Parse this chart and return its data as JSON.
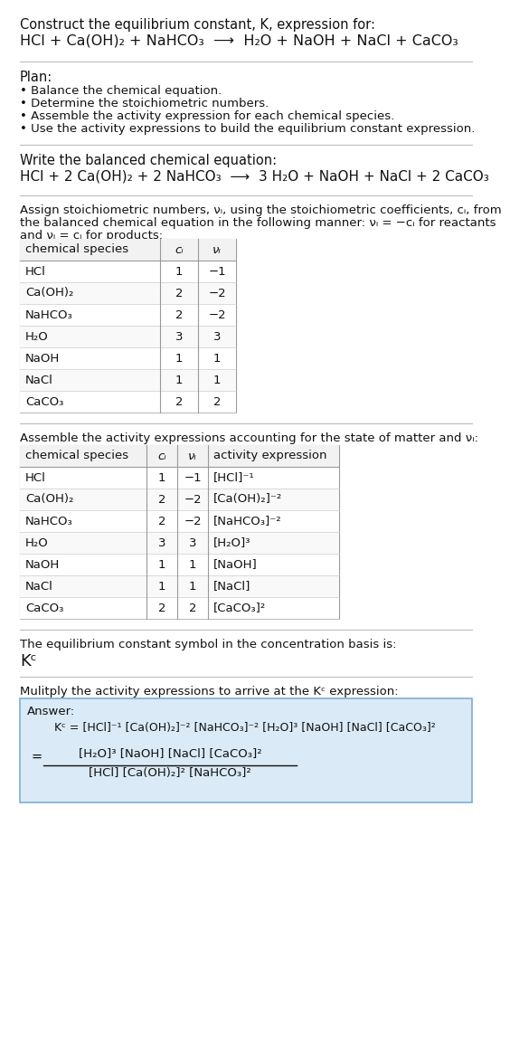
{
  "title1": "Construct the equilibrium constant, K, expression for:",
  "title2": "HCl + Ca(OH)₂ + NaHCO₃  ⟶  H₂O + NaOH + NaCl + CaCO₃",
  "plan_header": "Plan:",
  "plan_items": [
    "• Balance the chemical equation.",
    "• Determine the stoichiometric numbers.",
    "• Assemble the activity expression for each chemical species.",
    "• Use the activity expressions to build the equilibrium constant expression."
  ],
  "bal_header": "Write the balanced chemical equation:",
  "bal_eq": "HCl + 2 Ca(OH)₂ + 2 NaHCO₃  ⟶  3 H₂O + NaOH + NaCl + 2 CaCO₃",
  "stoich_text1": "Assign stoichiometric numbers, νᵢ, using the stoichiometric coefficients, cᵢ, from",
  "stoich_text2": "the balanced chemical equation in the following manner: νᵢ = −cᵢ for reactants",
  "stoich_text3": "and νᵢ = cᵢ for products:",
  "t1_headers": [
    "chemical species",
    "cᵢ",
    "νᵢ"
  ],
  "t1_rows": [
    [
      "HCl",
      "1",
      "−1"
    ],
    [
      "Ca(OH)₂",
      "2",
      "−2"
    ],
    [
      "NaHCO₃",
      "2",
      "−2"
    ],
    [
      "H₂O",
      "3",
      "3"
    ],
    [
      "NaOH",
      "1",
      "1"
    ],
    [
      "NaCl",
      "1",
      "1"
    ],
    [
      "CaCO₃",
      "2",
      "2"
    ]
  ],
  "act_header": "Assemble the activity expressions accounting for the state of matter and νᵢ:",
  "t2_headers": [
    "chemical species",
    "cᵢ",
    "νᵢ",
    "activity expression"
  ],
  "t2_rows": [
    [
      "HCl",
      "1",
      "−1",
      "[HCl]⁻¹"
    ],
    [
      "Ca(OH)₂",
      "2",
      "−2",
      "[Ca(OH)₂]⁻²"
    ],
    [
      "NaHCO₃",
      "2",
      "−2",
      "[NaHCO₃]⁻²"
    ],
    [
      "H₂O",
      "3",
      "3",
      "[H₂O]³"
    ],
    [
      "NaOH",
      "1",
      "1",
      "[NaOH]"
    ],
    [
      "NaCl",
      "1",
      "1",
      "[NaCl]"
    ],
    [
      "CaCO₃",
      "2",
      "2",
      "[CaCO₃]²"
    ]
  ],
  "kc_header": "The equilibrium constant symbol in the concentration basis is:",
  "kc_symbol": "Kᶜ",
  "mul_header": "Mulitply the activity expressions to arrive at the Kᶜ expression:",
  "ans_label": "Answer:",
  "ans_line1": "Kᶜ = [HCl]⁻¹ [Ca(OH)₂]⁻² [NaHCO₃]⁻² [H₂O]³ [NaOH] [NaCl] [CaCO₃]²",
  "ans_eq_line1_num": "[H₂O]³ [NaOH] [NaCl] [CaCO₃]²",
  "ans_eq_line1_den": "[HCl] [Ca(OH)₂]² [NaHCO₃]²",
  "bg": "#ffffff",
  "ans_bg": "#daeaf6",
  "ans_border": "#7bafd4",
  "div_color": "#bbbbbb",
  "text_color": "#111111",
  "fs": 10.5,
  "fs_small": 9.5,
  "fs_title2": 11.5,
  "fs_bal": 11.0,
  "fs_kc": 13.0
}
